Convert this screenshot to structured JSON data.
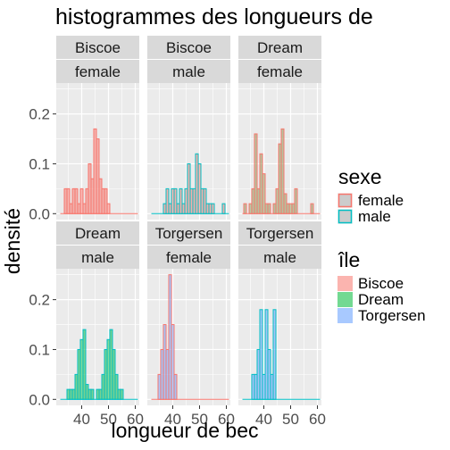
{
  "chart_data": {
    "type": "bar",
    "title": "histogrammes des longueurs de",
    "xlabel": "longueur de bec",
    "ylabel": "densité",
    "xlim": [
      30.5,
      61.5
    ],
    "ylim": [
      -0.012,
      0.262
    ],
    "x_ticks": [
      40,
      50,
      60
    ],
    "x_tick_labels": [
      "40",
      "50",
      "60"
    ],
    "y_ticks": [
      0.0,
      0.1,
      0.2
    ],
    "y_tick_labels": [
      "0.0",
      "0.1",
      "0.2"
    ],
    "bin_width": 1,
    "grid": true,
    "legend_position": "right",
    "legends": [
      {
        "title": "sexe",
        "kind": "outline",
        "entries": [
          {
            "label": "female",
            "color": "#F8766D"
          },
          {
            "label": "male",
            "color": "#00BFC4"
          }
        ]
      },
      {
        "title": "île",
        "kind": "fill",
        "entries": [
          {
            "label": "Biscoe",
            "color": "#F8766D"
          },
          {
            "label": "Dream",
            "color": "#00BA38"
          },
          {
            "label": "Torgersen",
            "color": "#619CFF"
          }
        ]
      }
    ],
    "panels": [
      {
        "strip": [
          "Biscoe",
          "female"
        ],
        "fill": "#F8766D",
        "outline": "#F8766D",
        "bins": [
          [
            34,
            0.05
          ],
          [
            35,
            0.05
          ],
          [
            36,
            0.02
          ],
          [
            37,
            0.05
          ],
          [
            38,
            0.05
          ],
          [
            39,
            0.02
          ],
          [
            40,
            0.05
          ],
          [
            41,
            0.02
          ],
          [
            42,
            0.05
          ],
          [
            43,
            0.1
          ],
          [
            44,
            0.07
          ],
          [
            45,
            0.17
          ],
          [
            46,
            0.15
          ],
          [
            47,
            0.07
          ],
          [
            48,
            0.05
          ],
          [
            49,
            0.05
          ],
          [
            50,
            0.02
          ]
        ],
        "range": [
          32,
          61
        ]
      },
      {
        "strip": [
          "Biscoe",
          "male"
        ],
        "fill": "#F8766D",
        "outline": "#00BFC4",
        "bins": [
          [
            37,
            0.02
          ],
          [
            38,
            0.05
          ],
          [
            39,
            0.02
          ],
          [
            40,
            0.05
          ],
          [
            41,
            0.05
          ],
          [
            42,
            0.02
          ],
          [
            43,
            0.05
          ],
          [
            44,
            0.02
          ],
          [
            45,
            0.05
          ],
          [
            46,
            0.1
          ],
          [
            47,
            0.05
          ],
          [
            48,
            0.05
          ],
          [
            49,
            0.12
          ],
          [
            50,
            0.1
          ],
          [
            51,
            0.05
          ],
          [
            52,
            0.05
          ],
          [
            53,
            0.02
          ],
          [
            54,
            0.02
          ],
          [
            55,
            0.02
          ],
          [
            59,
            0.02
          ]
        ],
        "range": [
          32,
          61
        ]
      },
      {
        "strip": [
          "Dream",
          "female"
        ],
        "fill": "#7F9A4F",
        "outline": "#F8766D",
        "bins": [
          [
            33,
            0.02
          ],
          [
            35,
            0.02
          ],
          [
            36,
            0.05
          ],
          [
            37,
            0.16
          ],
          [
            38,
            0.05
          ],
          [
            39,
            0.12
          ],
          [
            40,
            0.08
          ],
          [
            41,
            0.02
          ],
          [
            42,
            0.02
          ],
          [
            44,
            0.02
          ],
          [
            45,
            0.05
          ],
          [
            46,
            0.14
          ],
          [
            47,
            0.17
          ],
          [
            48,
            0.04
          ],
          [
            49,
            0.02
          ],
          [
            50,
            0.02
          ],
          [
            51,
            0.02
          ],
          [
            52,
            0.05
          ],
          [
            58,
            0.02
          ]
        ],
        "range": [
          32,
          61
        ]
      },
      {
        "strip": [
          "Dream",
          "male"
        ],
        "fill": "#00BA38",
        "outline": "#00BFC4",
        "bins": [
          [
            35,
            0.02
          ],
          [
            36,
            0.02
          ],
          [
            37,
            0.02
          ],
          [
            38,
            0.05
          ],
          [
            39,
            0.1
          ],
          [
            40,
            0.12
          ],
          [
            41,
            0.14
          ],
          [
            42,
            0.03
          ],
          [
            43,
            0.02
          ],
          [
            44,
            0.02
          ],
          [
            46,
            0.02
          ],
          [
            47,
            0.02
          ],
          [
            48,
            0.05
          ],
          [
            49,
            0.1
          ],
          [
            50,
            0.12
          ],
          [
            51,
            0.14
          ],
          [
            52,
            0.1
          ],
          [
            53,
            0.05
          ],
          [
            54,
            0.02
          ],
          [
            55,
            0.02
          ]
        ],
        "range": [
          32,
          61
        ]
      },
      {
        "strip": [
          "Torgersen",
          "female"
        ],
        "fill": "#619CFF",
        "outline": "#F8766D",
        "bins": [
          [
            35,
            0.05
          ],
          [
            36,
            0.1
          ],
          [
            37,
            0.15
          ],
          [
            38,
            0.1
          ],
          [
            39,
            0.25
          ],
          [
            40,
            0.15
          ],
          [
            41,
            0.05
          ]
        ],
        "range": [
          32,
          61
        ]
      },
      {
        "strip": [
          "Torgersen",
          "male"
        ],
        "fill": "#619CFF",
        "outline": "#00BFC4",
        "bins": [
          [
            36,
            0.05
          ],
          [
            37,
            0.05
          ],
          [
            38,
            0.1
          ],
          [
            39,
            0.18
          ],
          [
            40,
            0.05
          ],
          [
            41,
            0.18
          ],
          [
            42,
            0.1
          ],
          [
            43,
            0.05
          ],
          [
            44,
            0.18
          ]
        ],
        "range": [
          32,
          61
        ]
      }
    ]
  }
}
